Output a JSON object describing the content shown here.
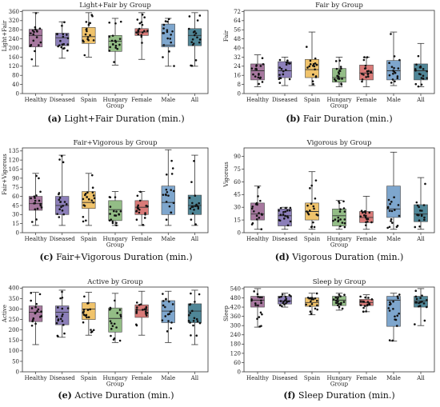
{
  "chart_data": [
    {
      "type": "box",
      "title": "Light+Fair by Group",
      "ylabel": "Light+Fair",
      "caption_letter": "(a)",
      "caption_text": "Light+Fair Duration (min.)",
      "categories": [
        "Healthy",
        "Diseased",
        "Spain",
        "Hungary Group",
        "Female",
        "Male",
        "All"
      ],
      "category_lines": [
        [
          "Healthy"
        ],
        [
          "Diseased"
        ],
        [
          "Spain"
        ],
        [
          "Hungary",
          "Group"
        ],
        [
          "Female"
        ],
        [
          "Male"
        ],
        [
          "All"
        ]
      ],
      "colors": [
        "#a7789f",
        "#8c7fb9",
        "#f0c36b",
        "#93bd86",
        "#d97a78",
        "#7ea6cd",
        "#4f8697"
      ],
      "yticks": [
        0,
        40,
        80,
        120,
        160,
        200,
        240,
        280,
        320,
        360
      ],
      "ylim": [
        0,
        365
      ],
      "grid": false,
      "boxes": [
        {
          "min": 120,
          "q1": 205,
          "median": 255,
          "q3": 282,
          "max": 355
        },
        {
          "min": 155,
          "q1": 210,
          "median": 245,
          "q3": 265,
          "max": 315
        },
        {
          "min": 160,
          "q1": 220,
          "median": 250,
          "q3": 290,
          "max": 355
        },
        {
          "min": 125,
          "q1": 185,
          "median": 230,
          "q3": 255,
          "max": 330
        },
        {
          "min": 150,
          "q1": 255,
          "median": 270,
          "q3": 285,
          "max": 355
        },
        {
          "min": 120,
          "q1": 205,
          "median": 212,
          "q3": 305,
          "max": 330
        },
        {
          "min": 120,
          "q1": 210,
          "median": 255,
          "q3": 285,
          "max": 355
        }
      ]
    },
    {
      "type": "box",
      "title": "Fair by Group",
      "ylabel": "Fair",
      "caption_letter": "(b)",
      "caption_text": "Fair Duration (min.)",
      "categories": [
        "Healthy",
        "Diseased",
        "Spain",
        "Hungary Group",
        "Female",
        "Male",
        "All"
      ],
      "category_lines": [
        [
          "Healthy"
        ],
        [
          "Diseased"
        ],
        [
          "Spain"
        ],
        [
          "Hungary",
          "Group"
        ],
        [
          "Female"
        ],
        [
          "Male"
        ],
        [
          "All"
        ]
      ],
      "colors": [
        "#a7789f",
        "#8c7fb9",
        "#f0c36b",
        "#93bd86",
        "#d97a78",
        "#7ea6cd",
        "#4f8697"
      ],
      "yticks": [
        0,
        8,
        16,
        24,
        32,
        40,
        48,
        56,
        64,
        72
      ],
      "ylim": [
        0,
        73
      ],
      "grid": false,
      "boxes": [
        {
          "min": 6,
          "q1": 12,
          "median": 20,
          "q3": 26,
          "max": 34
        },
        {
          "min": 7,
          "q1": 14,
          "median": 20,
          "q3": 28,
          "max": 32
        },
        {
          "min": 7,
          "q1": 14,
          "median": 21,
          "q3": 30,
          "max": 54
        },
        {
          "min": 6,
          "q1": 10,
          "median": 14,
          "q3": 22,
          "max": 32
        },
        {
          "min": 6,
          "q1": 12,
          "median": 18,
          "q3": 25,
          "max": 32
        },
        {
          "min": 7,
          "q1": 12,
          "median": 20,
          "q3": 29,
          "max": 54
        },
        {
          "min": 6,
          "q1": 12,
          "median": 20,
          "q3": 26,
          "max": 44
        }
      ]
    },
    {
      "type": "box",
      "title": "Fair+Vigorous by Group",
      "ylabel": "Fair+Vigorous",
      "caption_letter": "(c)",
      "caption_text": "Fair+Vigorous Duration (min.)",
      "categories": [
        "Healthy",
        "Diseased",
        "Spain",
        "Hungary Group",
        "Female",
        "Male",
        "All"
      ],
      "category_lines": [
        [
          "Healthy"
        ],
        [
          "Diseased"
        ],
        [
          "Spain"
        ],
        [
          "Hungary",
          "Group"
        ],
        [
          "Female"
        ],
        [
          "Male"
        ],
        [
          "All"
        ]
      ],
      "colors": [
        "#a7789f",
        "#8c7fb9",
        "#f0c36b",
        "#93bd86",
        "#d97a78",
        "#7ea6cd",
        "#4f8697"
      ],
      "yticks": [
        0,
        15,
        30,
        45,
        60,
        75,
        90,
        105,
        120,
        135
      ],
      "ylim": [
        0,
        140
      ],
      "grid": false,
      "boxes": [
        {
          "min": 12,
          "q1": 37,
          "median": 48,
          "q3": 60,
          "max": 98
        },
        {
          "min": 12,
          "q1": 30,
          "median": 45,
          "q3": 60,
          "max": 128
        },
        {
          "min": 12,
          "q1": 40,
          "median": 50,
          "q3": 68,
          "max": 98
        },
        {
          "min": 12,
          "q1": 20,
          "median": 38,
          "q3": 53,
          "max": 68
        },
        {
          "min": 12,
          "q1": 30,
          "median": 42,
          "q3": 53,
          "max": 68
        },
        {
          "min": 12,
          "q1": 30,
          "median": 50,
          "q3": 77,
          "max": 137
        },
        {
          "min": 12,
          "q1": 30,
          "median": 45,
          "q3": 62,
          "max": 128
        }
      ]
    },
    {
      "type": "box",
      "title": "Vigorous by Group",
      "ylabel": "Vigorous",
      "caption_letter": "(d)",
      "caption_text": "Vigorous Duration (min.)",
      "categories": [
        "Healthy",
        "Diseased",
        "Spain",
        "Hungary Group",
        "Female",
        "Male",
        "All"
      ],
      "category_lines": [
        [
          "Healthy"
        ],
        [
          "Diseased"
        ],
        [
          "Spain"
        ],
        [
          "Hungary",
          "Group"
        ],
        [
          "Female"
        ],
        [
          "Male"
        ],
        [
          "All"
        ]
      ],
      "colors": [
        "#a7789f",
        "#8c7fb9",
        "#f0c36b",
        "#93bd86",
        "#d97a78",
        "#7ea6cd",
        "#4f8697"
      ],
      "yticks": [
        0,
        15,
        30,
        45,
        60,
        75,
        90
      ],
      "ylim": [
        0,
        100
      ],
      "grid": false,
      "boxes": [
        {
          "min": 4,
          "q1": 15,
          "median": 22,
          "q3": 35,
          "max": 55
        },
        {
          "min": 4,
          "q1": 8,
          "median": 20,
          "q3": 28,
          "max": 30
        },
        {
          "min": 4,
          "q1": 15,
          "median": 25,
          "q3": 35,
          "max": 72
        },
        {
          "min": 4,
          "q1": 8,
          "median": 20,
          "q3": 28,
          "max": 38
        },
        {
          "min": 4,
          "q1": 12,
          "median": 18,
          "q3": 25,
          "max": 43
        },
        {
          "min": 4,
          "q1": 18,
          "median": 28,
          "q3": 55,
          "max": 95
        },
        {
          "min": 4,
          "q1": 13,
          "median": 22,
          "q3": 33,
          "max": 65
        }
      ]
    },
    {
      "type": "box",
      "title": "Active by Group",
      "ylabel": "Active",
      "caption_letter": "(e)",
      "caption_text": "Active Duration (min.)",
      "categories": [
        "Healthy",
        "Diseased",
        "Spain",
        "Hungary Group",
        "Female",
        "Male",
        "All"
      ],
      "category_lines": [
        [
          "Healthy"
        ],
        [
          "Diseased"
        ],
        [
          "Spain"
        ],
        [
          "Hungary",
          "Group"
        ],
        [
          "Female"
        ],
        [
          "Male"
        ],
        [
          "All"
        ]
      ],
      "colors": [
        "#a7789f",
        "#8c7fb9",
        "#f0c36b",
        "#93bd86",
        "#d97a78",
        "#7ea6cd",
        "#4f8697"
      ],
      "yticks": [
        0,
        50,
        100,
        150,
        200,
        250,
        300,
        350,
        400
      ],
      "ylim": [
        0,
        405
      ],
      "grid": false,
      "boxes": [
        {
          "min": 130,
          "q1": 240,
          "median": 285,
          "q3": 315,
          "max": 380
        },
        {
          "min": 165,
          "q1": 225,
          "median": 285,
          "q3": 315,
          "max": 390
        },
        {
          "min": 175,
          "q1": 250,
          "median": 300,
          "q3": 330,
          "max": 380
        },
        {
          "min": 140,
          "q1": 190,
          "median": 255,
          "q3": 305,
          "max": 375
        },
        {
          "min": 175,
          "q1": 260,
          "median": 295,
          "q3": 320,
          "max": 385
        },
        {
          "min": 140,
          "q1": 235,
          "median": 290,
          "q3": 340,
          "max": 385
        },
        {
          "min": 130,
          "q1": 235,
          "median": 290,
          "q3": 325,
          "max": 390
        }
      ]
    },
    {
      "type": "box",
      "title": "Sleep by Group",
      "ylabel": "Sleep",
      "caption_letter": "(f)",
      "caption_text": "Sleep Duration (min.)",
      "categories": [
        "Healthy",
        "Diseased",
        "Spain",
        "Hungary Group",
        "Female",
        "Male",
        "All"
      ],
      "category_lines": [
        [
          "Healthy"
        ],
        [
          "Diseased"
        ],
        [
          "Spain"
        ],
        [
          "Hungary",
          "Group"
        ],
        [
          "Female"
        ],
        [
          "Male"
        ],
        [
          "All"
        ]
      ],
      "colors": [
        "#a7789f",
        "#8c7fb9",
        "#f0c36b",
        "#93bd86",
        "#d97a78",
        "#7ea6cd",
        "#4f8697"
      ],
      "yticks": [
        0,
        60,
        120,
        180,
        240,
        300,
        360,
        420,
        480,
        540
      ],
      "ylim": [
        0,
        550
      ],
      "grid": false,
      "boxes": [
        {
          "min": 290,
          "q1": 420,
          "median": 465,
          "q3": 490,
          "max": 540
        },
        {
          "min": 420,
          "q1": 440,
          "median": 460,
          "q3": 490,
          "max": 510
        },
        {
          "min": 370,
          "q1": 425,
          "median": 450,
          "q3": 480,
          "max": 510
        },
        {
          "min": 400,
          "q1": 430,
          "median": 465,
          "q3": 490,
          "max": 510
        },
        {
          "min": 390,
          "q1": 430,
          "median": 450,
          "q3": 470,
          "max": 500
        },
        {
          "min": 200,
          "q1": 295,
          "median": 465,
          "q3": 490,
          "max": 510
        },
        {
          "min": 300,
          "q1": 420,
          "median": 460,
          "q3": 490,
          "max": 540
        }
      ]
    }
  ]
}
